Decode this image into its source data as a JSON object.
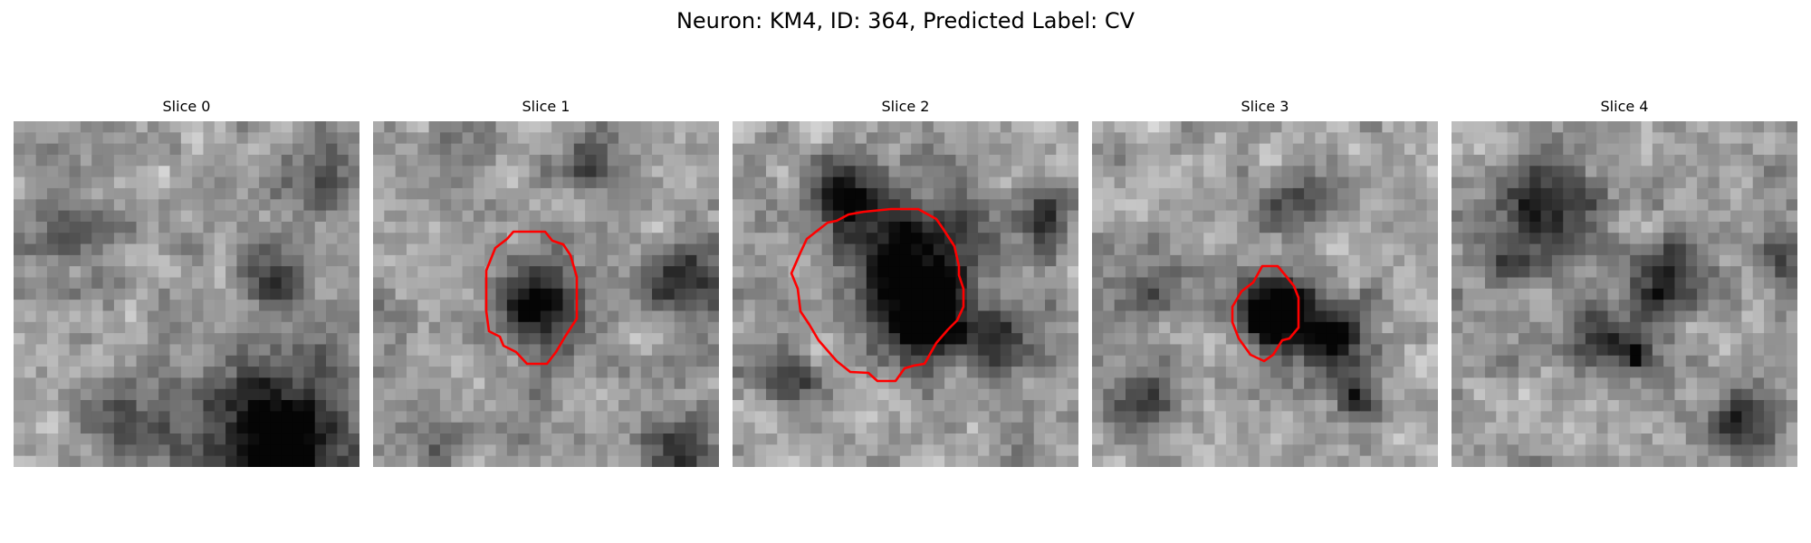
{
  "figure": {
    "title": "Neuron: KM4, ID: 364, Predicted Label: CV"
  },
  "panels": [
    {
      "title": "Slice 0",
      "has_contour": false,
      "contour_color": "#ff0000"
    },
    {
      "title": "Slice 1",
      "has_contour": true,
      "contour_color": "#ff0000"
    },
    {
      "title": "Slice 2",
      "has_contour": true,
      "contour_color": "#ff0000"
    },
    {
      "title": "Slice 3",
      "has_contour": true,
      "contour_color": "#ff0000"
    },
    {
      "title": "Slice 4",
      "has_contour": false,
      "contour_color": "#ff0000"
    }
  ],
  "colormap": "gray"
}
